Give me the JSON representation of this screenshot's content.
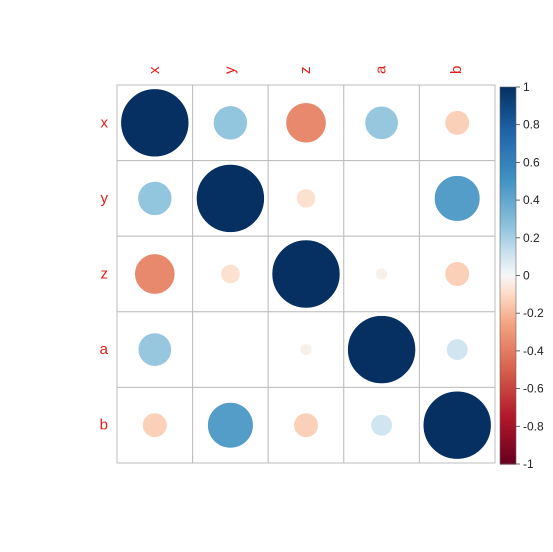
{
  "chart_data": {
    "type": "heatmap",
    "variables": [
      "x",
      "y",
      "z",
      "a",
      "b"
    ],
    "matrix": [
      [
        1.0,
        0.25,
        -0.35,
        0.24,
        -0.13
      ],
      [
        0.25,
        1.0,
        -0.08,
        0.0,
        0.45
      ],
      [
        -0.35,
        -0.08,
        1.0,
        -0.03,
        -0.13
      ],
      [
        0.24,
        0.0,
        -0.03,
        1.0,
        0.1
      ],
      [
        -0.13,
        0.45,
        -0.13,
        0.1,
        1.0
      ]
    ],
    "colorbar": {
      "range": [
        -1,
        1
      ],
      "ticks": [
        "-1",
        "-0.8",
        "-0.6",
        "-0.4",
        "-0.2",
        "0",
        "0.2",
        "0.4",
        "0.6",
        "0.8",
        "1"
      ],
      "placement": "right"
    },
    "colors": {
      "label": "#e0201b",
      "grid": "#bebebe",
      "neg_end": "#67001f",
      "mid": "#f7f7f7",
      "pos_end": "#053061"
    },
    "grid": true
  }
}
